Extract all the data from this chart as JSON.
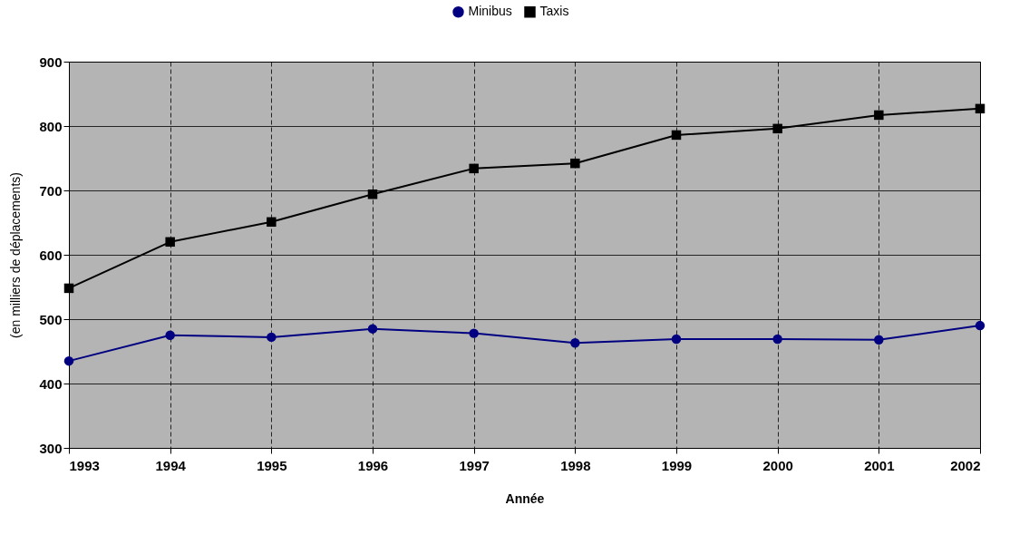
{
  "chart_data": {
    "type": "line",
    "xlabel": "Année",
    "ylabel": "(en milliers de déplacements)",
    "x": [
      1993,
      1994,
      1995,
      1996,
      1997,
      1998,
      1999,
      2000,
      2001,
      2002
    ],
    "series": [
      {
        "name": "Minibus",
        "color": "#000080",
        "marker": "circle",
        "values": [
          435,
          475,
          472,
          485,
          478,
          463,
          469,
          469,
          468,
          490
        ]
      },
      {
        "name": "Taxis",
        "color": "#000000",
        "marker": "square",
        "values": [
          548,
          620,
          651,
          694,
          734,
          742,
          786,
          796,
          817,
          827
        ]
      }
    ],
    "xlim": [
      1993,
      2002
    ],
    "xticks": [
      1993,
      1994,
      1995,
      1996,
      1997,
      1998,
      1999,
      2000,
      2001,
      2002
    ],
    "ylim": [
      300,
      900
    ],
    "yticks": [
      300,
      400,
      500,
      600,
      700,
      800,
      900
    ],
    "grid": true,
    "legend": "top",
    "line_style": "solid"
  }
}
